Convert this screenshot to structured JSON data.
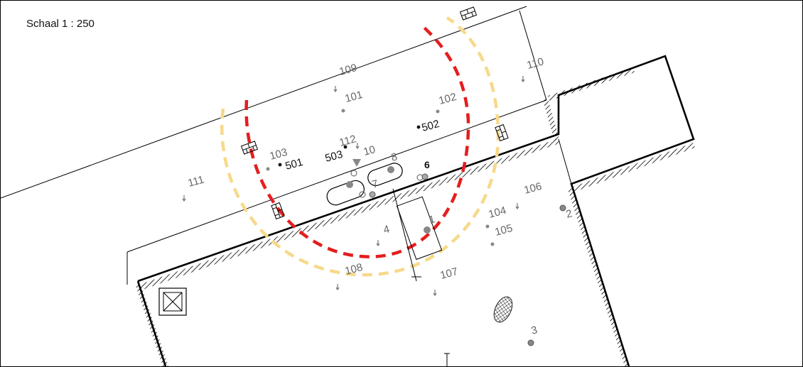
{
  "scale_label": "Schaal 1 : 250",
  "colors": {
    "line": "#000000",
    "red_contour": "#e41e1e",
    "yellow_contour": "#f6d98a",
    "marker_gray": "#888888",
    "label_gray": "#666666",
    "label_dark": "#111111"
  },
  "labels": {
    "p101": "101",
    "p102": "102",
    "p103": "103",
    "p104": "104",
    "p105": "105",
    "p106": "106",
    "p107": "107",
    "p108": "108",
    "p109": "109",
    "p110": "110",
    "p111": "111",
    "p112": "112",
    "p501": "501",
    "p502": "502",
    "p503": "503",
    "b1": "1",
    "b2": "2",
    "b3": "3",
    "b4": "4",
    "b6": "6",
    "b7": "7",
    "b8": "8",
    "b10": "10"
  },
  "icons": {
    "north_arrow": "arrow-down-icon",
    "wall_marker": "brick-wall-icon",
    "crate": "crossed-box-icon",
    "hatched_area": "crosshatch-ellipse-icon"
  }
}
